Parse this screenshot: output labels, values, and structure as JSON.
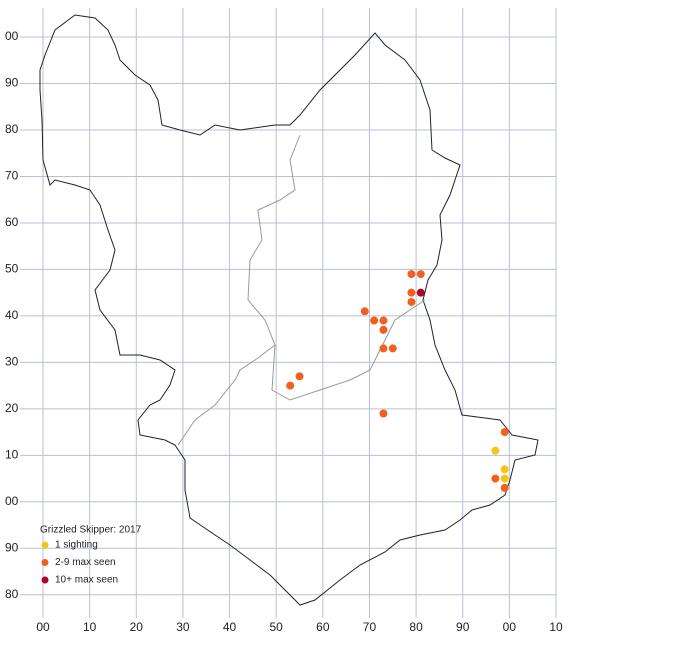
{
  "chart_data": {
    "type": "scatter",
    "legend_title": "Grizzled Skipper:  2017",
    "xlim": [
      -5,
      110
    ],
    "ylim": [
      -25,
      105
    ],
    "grid": true,
    "xticks": [
      {
        "value": 0,
        "label": "00"
      },
      10,
      20,
      30,
      40,
      50,
      60,
      70,
      80,
      90,
      {
        "value": 100,
        "label": "00"
      },
      {
        "value": 110,
        "label": "10"
      }
    ],
    "yticks": [
      {
        "value": -20,
        "label": "80"
      },
      {
        "value": -10,
        "label": "90"
      },
      {
        "value": 0,
        "label": "00"
      },
      10,
      20,
      30,
      40,
      50,
      60,
      70,
      80,
      90,
      {
        "value": 100,
        "label": "00"
      }
    ],
    "series": [
      {
        "name": "1 sighting",
        "color": "#f5c518",
        "x": [
          97,
          99,
          99
        ],
        "y": [
          11,
          7,
          5
        ]
      },
      {
        "name": "2-9 max seen",
        "color": "#f06020",
        "x": [
          79,
          81,
          79,
          79,
          69,
          71,
          73,
          73,
          73,
          75,
          55,
          53,
          73,
          99,
          97,
          99
        ],
        "y": [
          49,
          49,
          45,
          43,
          41,
          39,
          39,
          37,
          33,
          33,
          27,
          25,
          19,
          15,
          5,
          3
        ]
      },
      {
        "name": "10+ max seen",
        "color": "#b0002a",
        "x": [
          81
        ],
        "y": [
          45
        ]
      }
    ]
  }
}
